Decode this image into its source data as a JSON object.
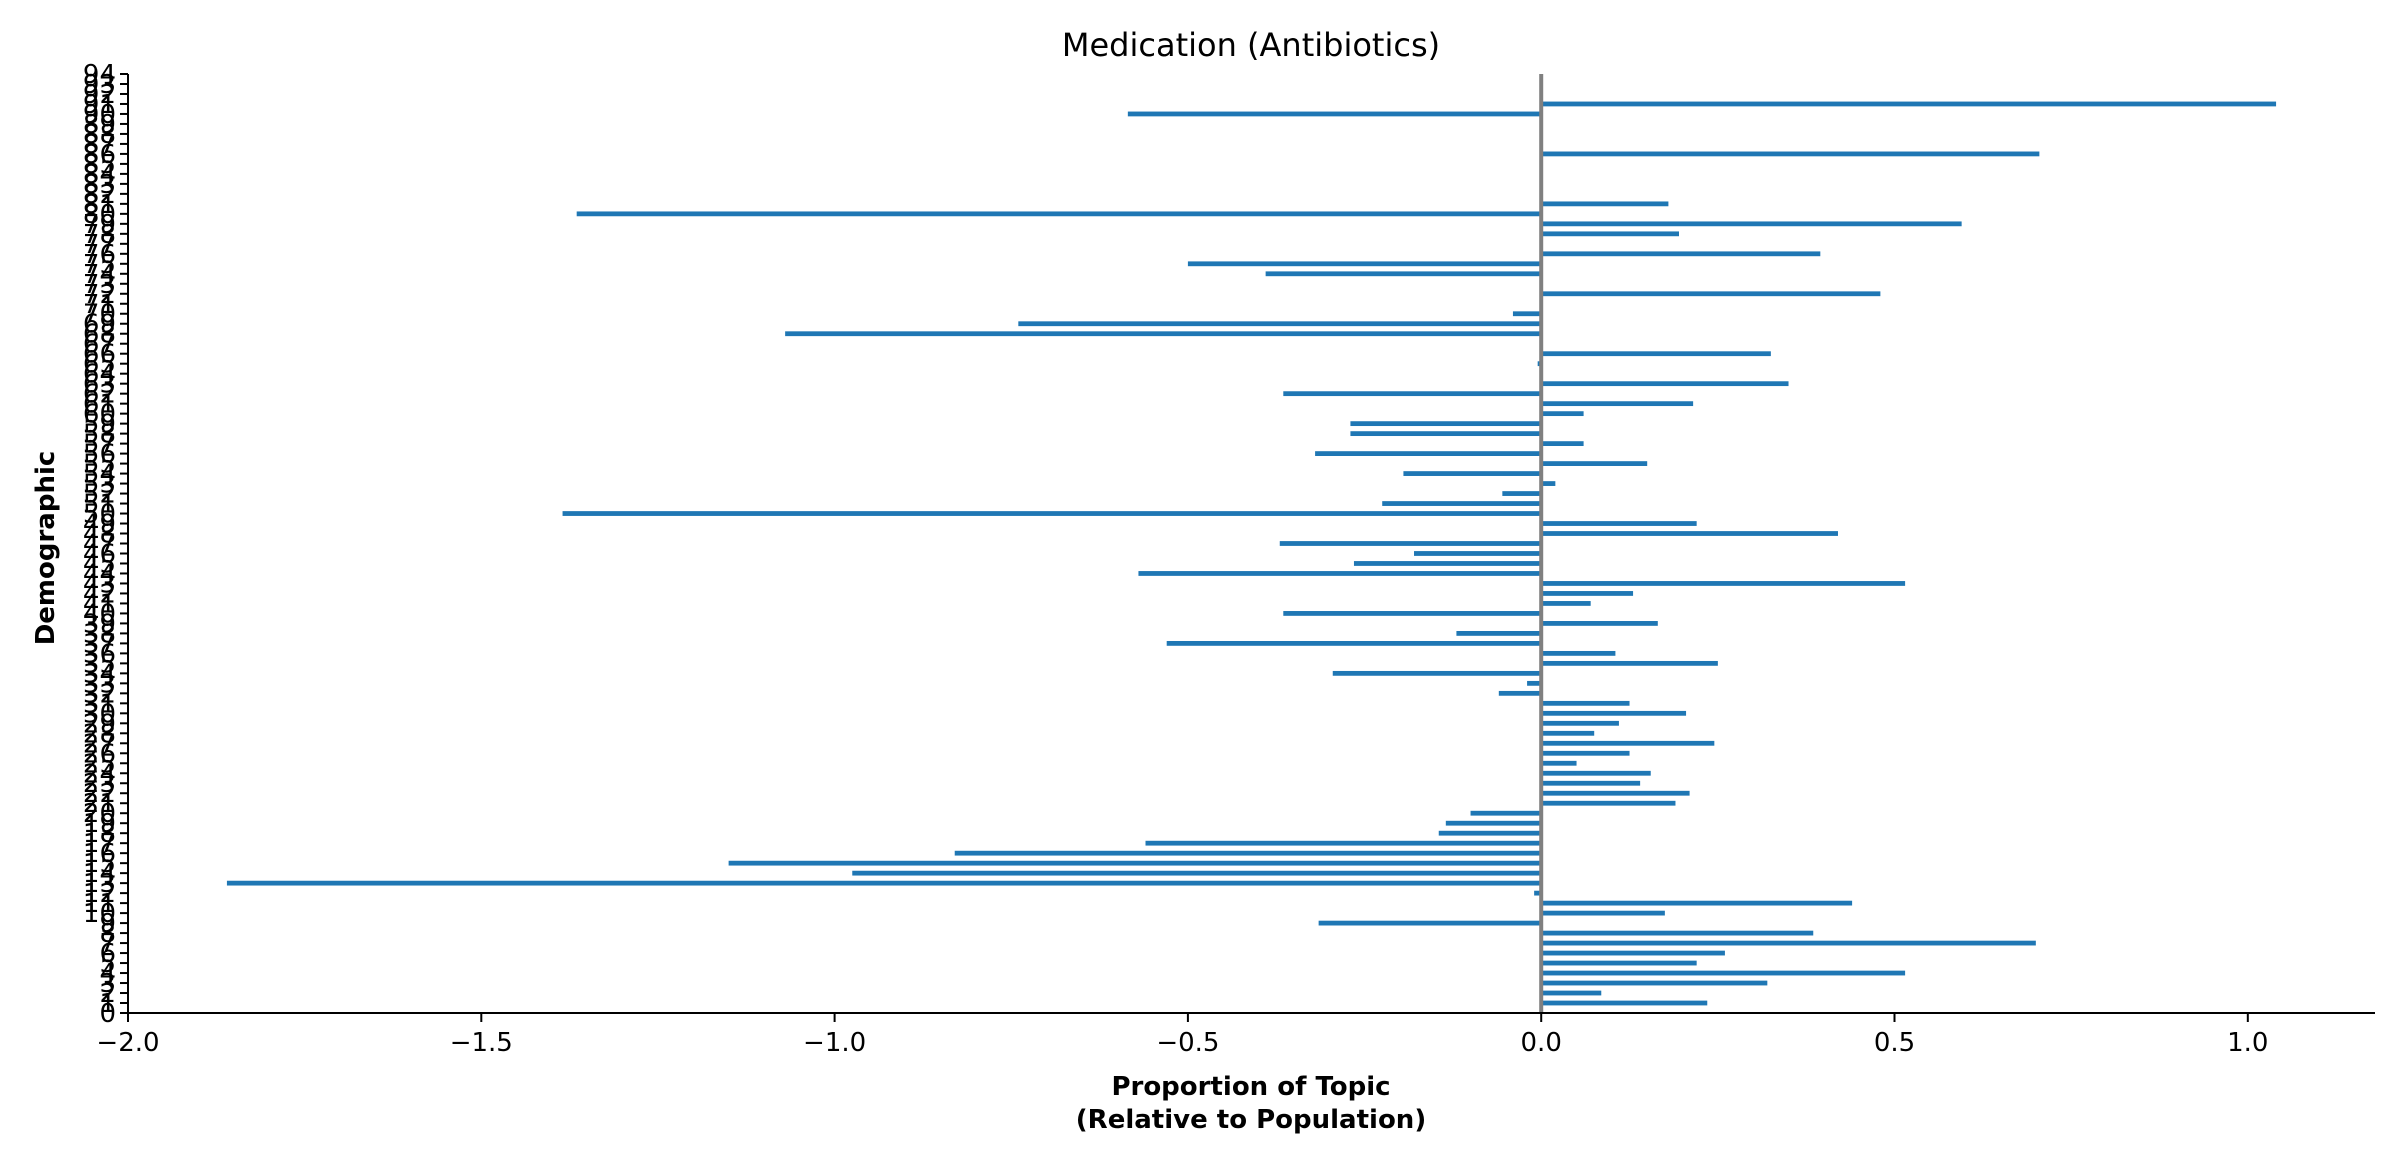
{
  "chart_data": {
    "type": "bar",
    "orientation": "horizontal",
    "title": "Medication (Antibiotics)",
    "xlabel_lines": [
      "Proportion of Topic",
      "(Relative to Population)"
    ],
    "ylabel": "Demographic",
    "xlim": [
      -2.0,
      1.18
    ],
    "ylim": [
      0,
      94
    ],
    "xticks": [
      -2.0,
      -1.5,
      -1.0,
      -0.5,
      0.0,
      0.5,
      1.0
    ],
    "xtick_labels": [
      "−2.0",
      "−1.5",
      "−1.0",
      "−0.5",
      "0.0",
      "0.5",
      "1.0"
    ],
    "yticks": [
      0,
      1,
      2,
      3,
      4,
      5,
      6,
      7,
      8,
      9,
      10,
      11,
      12,
      13,
      14,
      15,
      16,
      17,
      18,
      19,
      20,
      21,
      22,
      23,
      24,
      25,
      26,
      27,
      28,
      29,
      30,
      31,
      32,
      33,
      34,
      35,
      36,
      37,
      38,
      39,
      40,
      41,
      42,
      43,
      44,
      45,
      46,
      47,
      48,
      49,
      50,
      51,
      52,
      53,
      54,
      55,
      56,
      57,
      58,
      59,
      60,
      61,
      62,
      63,
      64,
      65,
      66,
      67,
      68,
      69,
      70,
      71,
      72,
      73,
      74,
      75,
      76,
      77,
      78,
      79,
      80,
      81,
      82,
      83,
      84,
      85,
      86,
      87,
      88,
      89,
      90,
      91,
      92,
      93,
      94
    ],
    "bar_color": "#1f77b4",
    "zero_line_color": "#808080",
    "grid": false,
    "bars": [
      {
        "y": 1,
        "value": 0.235
      },
      {
        "y": 2,
        "value": 0.085
      },
      {
        "y": 3,
        "value": 0.32
      },
      {
        "y": 4,
        "value": 0.515
      },
      {
        "y": 5,
        "value": 0.22
      },
      {
        "y": 6,
        "value": 0.26
      },
      {
        "y": 7,
        "value": 0.7
      },
      {
        "y": 8,
        "value": 0.385
      },
      {
        "y": 9,
        "value": -0.315
      },
      {
        "y": 10,
        "value": 0.175
      },
      {
        "y": 11,
        "value": 0.44
      },
      {
        "y": 12,
        "value": -0.01
      },
      {
        "y": 13,
        "value": -1.86
      },
      {
        "y": 14,
        "value": -0.975
      },
      {
        "y": 15,
        "value": -1.15
      },
      {
        "y": 16,
        "value": -0.83
      },
      {
        "y": 17,
        "value": -0.56
      },
      {
        "y": 18,
        "value": -0.145
      },
      {
        "y": 19,
        "value": -0.135
      },
      {
        "y": 20,
        "value": -0.1
      },
      {
        "y": 21,
        "value": 0.19
      },
      {
        "y": 22,
        "value": 0.21
      },
      {
        "y": 23,
        "value": 0.14
      },
      {
        "y": 24,
        "value": 0.155
      },
      {
        "y": 25,
        "value": 0.05
      },
      {
        "y": 26,
        "value": 0.125
      },
      {
        "y": 27,
        "value": 0.245
      },
      {
        "y": 28,
        "value": 0.075
      },
      {
        "y": 29,
        "value": 0.11
      },
      {
        "y": 30,
        "value": 0.205
      },
      {
        "y": 31,
        "value": 0.125
      },
      {
        "y": 32,
        "value": -0.06
      },
      {
        "y": 33,
        "value": -0.02
      },
      {
        "y": 34,
        "value": -0.295
      },
      {
        "y": 35,
        "value": 0.25
      },
      {
        "y": 36,
        "value": 0.105
      },
      {
        "y": 37,
        "value": -0.53
      },
      {
        "y": 38,
        "value": -0.12
      },
      {
        "y": 39,
        "value": 0.165
      },
      {
        "y": 40,
        "value": -0.365
      },
      {
        "y": 41,
        "value": 0.07
      },
      {
        "y": 42,
        "value": 0.13
      },
      {
        "y": 43,
        "value": 0.515
      },
      {
        "y": 44,
        "value": -0.57
      },
      {
        "y": 45,
        "value": -0.265
      },
      {
        "y": 46,
        "value": -0.18
      },
      {
        "y": 47,
        "value": -0.37
      },
      {
        "y": 48,
        "value": 0.42
      },
      {
        "y": 49,
        "value": 0.22
      },
      {
        "y": 50,
        "value": -1.385
      },
      {
        "y": 51,
        "value": -0.225
      },
      {
        "y": 52,
        "value": -0.055
      },
      {
        "y": 53,
        "value": 0.02
      },
      {
        "y": 54,
        "value": -0.195
      },
      {
        "y": 55,
        "value": 0.15
      },
      {
        "y": 56,
        "value": -0.32
      },
      {
        "y": 57,
        "value": 0.06
      },
      {
        "y": 58,
        "value": -0.27
      },
      {
        "y": 59,
        "value": -0.27
      },
      {
        "y": 60,
        "value": 0.06
      },
      {
        "y": 61,
        "value": 0.215
      },
      {
        "y": 62,
        "value": -0.365
      },
      {
        "y": 63,
        "value": 0.35
      },
      {
        "y": 65,
        "value": -0.005
      },
      {
        "y": 66,
        "value": 0.325
      },
      {
        "y": 68,
        "value": -1.07
      },
      {
        "y": 69,
        "value": -0.74
      },
      {
        "y": 70,
        "value": -0.04
      },
      {
        "y": 72,
        "value": 0.48
      },
      {
        "y": 74,
        "value": -0.39
      },
      {
        "y": 75,
        "value": -0.5
      },
      {
        "y": 76,
        "value": 0.395
      },
      {
        "y": 78,
        "value": 0.195
      },
      {
        "y": 79,
        "value": 0.595
      },
      {
        "y": 80,
        "value": -1.365
      },
      {
        "y": 81,
        "value": 0.18
      },
      {
        "y": 86,
        "value": 0.705
      },
      {
        "y": 90,
        "value": -0.585
      },
      {
        "y": 91,
        "value": 1.04
      }
    ]
  }
}
